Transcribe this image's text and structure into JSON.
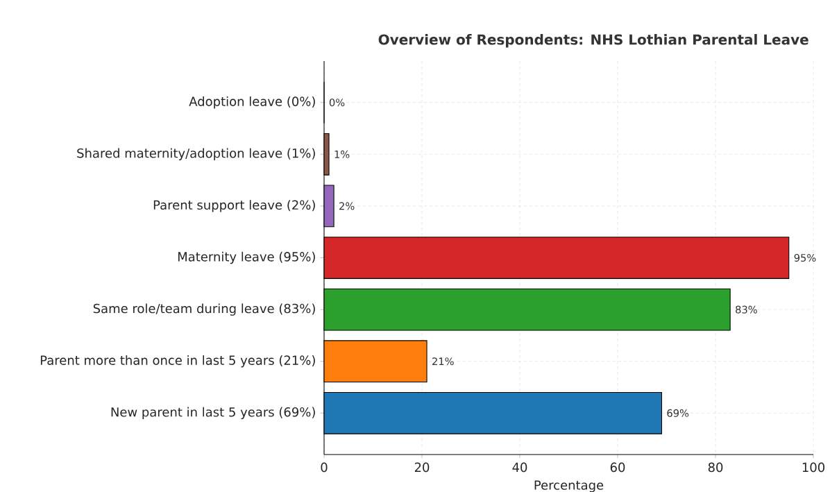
{
  "chart_data": {
    "type": "bar",
    "orientation": "horizontal",
    "title": "Overview of Respondents: NHS Lothian Parental Leave",
    "xlabel": "Percentage",
    "categories": [
      "Adoption leave (0%)",
      "Shared maternity/adoption leave (1%)",
      "Parent support leave (2%)",
      "Maternity leave (95%)",
      "Same role/team during leave (83%)",
      "Parent more than once in last 5 years (21%)",
      "New parent in last 5 years (69%)"
    ],
    "values": [
      0,
      1,
      2,
      95,
      83,
      21,
      69
    ],
    "colors": [
      "#e377c2",
      "#8c564b",
      "#9467bd",
      "#d62728",
      "#2ca02c",
      "#ff7f0e",
      "#1f77b4"
    ],
    "value_labels": [
      "0%",
      "1%",
      "2%",
      "95%",
      "83%",
      "21%",
      "69%"
    ],
    "xlim": [
      0,
      100
    ],
    "xticks": [
      0,
      20,
      40,
      60,
      80,
      100
    ],
    "grid": true
  }
}
